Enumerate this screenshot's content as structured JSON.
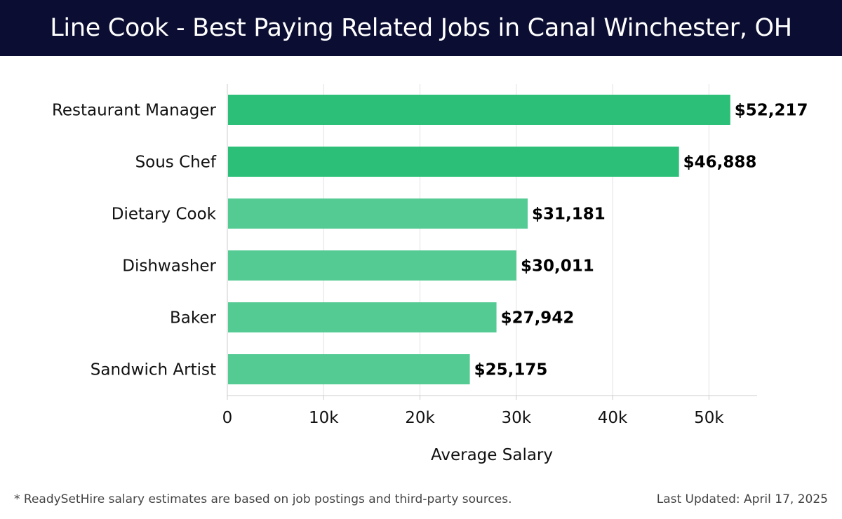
{
  "title": "Line Cook - Best Paying Related Jobs in Canal Winchester, OH",
  "chart_data": {
    "type": "bar",
    "orientation": "horizontal",
    "categories": [
      "Restaurant Manager",
      "Sous Chef",
      "Dietary Cook",
      "Dishwasher",
      "Baker",
      "Sandwich Artist"
    ],
    "values": [
      52217,
      46888,
      31181,
      30011,
      27942,
      25175
    ],
    "value_labels": [
      "$52,217",
      "$46,888",
      "$31,181",
      "$30,011",
      "$27,942",
      "$25,175"
    ],
    "xlabel": "Average Salary",
    "ylabel": "",
    "xlim": [
      0,
      55000
    ],
    "xticks": [
      0,
      10000,
      20000,
      30000,
      40000,
      50000
    ],
    "xtick_labels": [
      "0",
      "10k",
      "20k",
      "30k",
      "40k",
      "50k"
    ],
    "grid": "vertical",
    "colors": {
      "highlight": "#2bbf78",
      "normal": "#55cb94"
    },
    "highlighted_count": 2
  },
  "footer": {
    "note": "* ReadySetHire salary estimates are based on job postings and third-party sources.",
    "updated": "Last Updated: April 17, 2025"
  }
}
